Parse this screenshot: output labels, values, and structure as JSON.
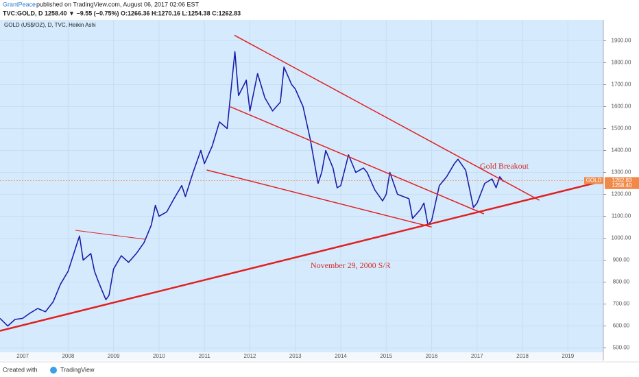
{
  "header": {
    "publisher": "GrantPeace",
    "published": "published on TradingView.com, August 06, 2017 02:06 EST",
    "quote": "TVC:GOLD, D  1258.40 ▼ −9.55 (−0.75%) O:1266.36 H:1270.16 L:1254.38 C:1262.83"
  },
  "footer": {
    "created": "Created with",
    "brand": "TradingView"
  },
  "chart_data": {
    "type": "line",
    "title": "GOLD (US$/OZ), D, TVC, Heikin Ashi",
    "x": [
      2006.5,
      2006.67,
      2006.83,
      2007.0,
      2007.17,
      2007.33,
      2007.5,
      2007.67,
      2007.83,
      2008.0,
      2008.17,
      2008.25,
      2008.33,
      2008.5,
      2008.58,
      2008.67,
      2008.83,
      2008.9,
      2009.0,
      2009.17,
      2009.33,
      2009.5,
      2009.67,
      2009.83,
      2009.92,
      2010.0,
      2010.17,
      2010.33,
      2010.5,
      2010.58,
      2010.75,
      2010.92,
      2011.0,
      2011.17,
      2011.33,
      2011.5,
      2011.67,
      2011.75,
      2011.92,
      2012.0,
      2012.17,
      2012.33,
      2012.5,
      2012.67,
      2012.75,
      2012.92,
      2013.0,
      2013.17,
      2013.33,
      2013.5,
      2013.58,
      2013.67,
      2013.83,
      2013.92,
      2014.0,
      2014.17,
      2014.33,
      2014.5,
      2014.58,
      2014.75,
      2014.92,
      2015.0,
      2015.08,
      2015.25,
      2015.5,
      2015.58,
      2015.75,
      2015.83,
      2015.92,
      2016.0,
      2016.17,
      2016.33,
      2016.5,
      2016.58,
      2016.75,
      2016.83,
      2016.92,
      2017.0,
      2017.17,
      2017.33,
      2017.42,
      2017.5,
      2017.58
    ],
    "series": [
      {
        "name": "GOLD",
        "color": "#1c1ca8",
        "values": [
          635,
          600,
          630,
          635,
          660,
          680,
          665,
          710,
          790,
          850,
          960,
          1010,
          900,
          930,
          850,
          800,
          720,
          740,
          860,
          920,
          890,
          930,
          980,
          1060,
          1150,
          1100,
          1120,
          1180,
          1240,
          1190,
          1300,
          1400,
          1340,
          1420,
          1530,
          1500,
          1850,
          1650,
          1720,
          1580,
          1750,
          1640,
          1580,
          1620,
          1780,
          1700,
          1680,
          1600,
          1450,
          1250,
          1300,
          1400,
          1320,
          1230,
          1240,
          1380,
          1300,
          1320,
          1300,
          1220,
          1170,
          1200,
          1300,
          1200,
          1180,
          1090,
          1130,
          1160,
          1060,
          1080,
          1240,
          1280,
          1340,
          1360,
          1310,
          1230,
          1140,
          1160,
          1250,
          1270,
          1230,
          1280,
          1258
        ]
      }
    ],
    "trendlines": [
      {
        "x": [
          2006.5,
          2019.78
        ],
        "y": [
          578,
          1261
        ],
        "color": "#e02020",
        "width": 2.5
      },
      {
        "x": [
          2011.66,
          2018.37
        ],
        "y": [
          1925,
          1173
        ],
        "color": "#e02020",
        "width": 1.5
      },
      {
        "x": [
          2011.57,
          2017.15
        ],
        "y": [
          1599,
          1111
        ],
        "color": "#e02020",
        "width": 1.5
      },
      {
        "x": [
          2011.05,
          2016.0
        ],
        "y": [
          1311,
          1051
        ],
        "color": "#e02020",
        "width": 1.5
      },
      {
        "x": [
          2008.16,
          2009.7
        ],
        "y": [
          1036,
          995
        ],
        "color": "#e02020",
        "width": 1
      }
    ],
    "annotations": [
      "Gold Breakout",
      "November 29, 2000 S/R"
    ],
    "last_price": 1262.83,
    "symbol": "GOLD",
    "close_label": {
      "value": 1258.4,
      "label": "1258.40"
    },
    "xlim": [
      2006.5,
      2019.78
    ],
    "xticks": [
      2007,
      2008,
      2009,
      2010,
      2011,
      2012,
      2013,
      2014,
      2015,
      2016,
      2017,
      2018,
      2019
    ],
    "ylim": [
      480,
      1995
    ],
    "yticks": [
      {
        "value": 500,
        "label": "500.00"
      },
      {
        "value": 600,
        "label": "600.00"
      },
      {
        "value": 700,
        "label": "700.00"
      },
      {
        "value": 800,
        "label": "800.00"
      },
      {
        "value": 900,
        "label": "900.00"
      },
      {
        "value": 1000,
        "label": "1000.00"
      },
      {
        "value": 1100,
        "label": "1100.00"
      },
      {
        "value": 1200,
        "label": "1200.00"
      },
      {
        "value": 1300,
        "label": "1300.00"
      },
      {
        "value": 1400,
        "label": "1400.00"
      },
      {
        "value": 1500,
        "label": "1500.00"
      },
      {
        "value": 1600,
        "label": "1600.00"
      },
      {
        "value": 1700,
        "label": "1700.00"
      },
      {
        "value": 1800,
        "label": "1800.00"
      },
      {
        "value": 1900,
        "label": "1900.00"
      }
    ],
    "grid": true
  }
}
